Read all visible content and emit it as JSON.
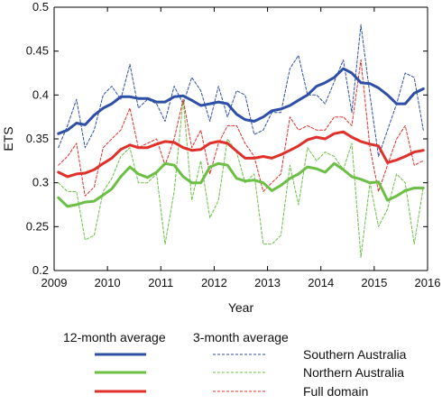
{
  "chart_data": {
    "type": "line",
    "xlabel": "Year",
    "ylabel": "ETS",
    "xlim": [
      2009,
      2016
    ],
    "ylim": [
      0.2,
      0.5
    ],
    "x_ticks": [
      2009,
      2010,
      2011,
      2012,
      2013,
      2014,
      2015,
      2016
    ],
    "y_ticks": [
      0.2,
      0.25,
      0.3,
      0.35,
      0.4,
      0.45,
      0.5
    ],
    "y_tick_labels": [
      "0.2",
      "0.25",
      "0.3",
      "0.35",
      "0.4",
      "0.45",
      "0.5"
    ],
    "grid": false,
    "legend": {
      "placement": "bottom",
      "header_12": "12-month average",
      "header_3": "3-month average",
      "entries": [
        "Southern Australia",
        "Northern Australia",
        "Full domain"
      ]
    },
    "colors": {
      "southern": "#2e4fa6",
      "northern": "#6cbf45",
      "full": "#e0302a"
    },
    "series": [
      {
        "name": "Southern Australia",
        "style": "12-month average",
        "key": "southern",
        "dashed": false,
        "x": [
          2009.08,
          2009.25,
          2009.42,
          2009.58,
          2009.75,
          2009.92,
          2010.08,
          2010.25,
          2010.42,
          2010.58,
          2010.75,
          2010.92,
          2011.08,
          2011.25,
          2011.42,
          2011.58,
          2011.75,
          2011.92,
          2012.08,
          2012.25,
          2012.42,
          2012.58,
          2012.75,
          2012.92,
          2013.08,
          2013.25,
          2013.42,
          2013.58,
          2013.75,
          2013.92,
          2014.08,
          2014.25,
          2014.42,
          2014.58,
          2014.75,
          2014.92,
          2015.08,
          2015.25,
          2015.42,
          2015.58,
          2015.75,
          2015.92
        ],
        "y": [
          0.356,
          0.36,
          0.368,
          0.366,
          0.377,
          0.385,
          0.39,
          0.398,
          0.398,
          0.396,
          0.396,
          0.392,
          0.392,
          0.398,
          0.399,
          0.394,
          0.388,
          0.39,
          0.392,
          0.39,
          0.378,
          0.372,
          0.37,
          0.375,
          0.382,
          0.384,
          0.388,
          0.394,
          0.4,
          0.41,
          0.414,
          0.42,
          0.43,
          0.425,
          0.414,
          0.413,
          0.408,
          0.4,
          0.39,
          0.39,
          0.402,
          0.407
        ]
      },
      {
        "name": "Northern Australia",
        "style": "12-month average",
        "key": "northern",
        "dashed": false,
        "x": [
          2009.08,
          2009.25,
          2009.42,
          2009.58,
          2009.75,
          2009.92,
          2010.08,
          2010.25,
          2010.42,
          2010.58,
          2010.75,
          2010.92,
          2011.08,
          2011.25,
          2011.42,
          2011.58,
          2011.75,
          2011.92,
          2012.08,
          2012.25,
          2012.42,
          2012.58,
          2012.75,
          2012.92,
          2013.08,
          2013.25,
          2013.42,
          2013.58,
          2013.75,
          2013.92,
          2014.08,
          2014.25,
          2014.42,
          2014.58,
          2014.75,
          2014.92,
          2015.08,
          2015.25,
          2015.42,
          2015.58,
          2015.75,
          2015.92
        ],
        "y": [
          0.283,
          0.273,
          0.275,
          0.278,
          0.279,
          0.286,
          0.293,
          0.307,
          0.318,
          0.31,
          0.306,
          0.312,
          0.322,
          0.32,
          0.307,
          0.3,
          0.3,
          0.318,
          0.322,
          0.32,
          0.305,
          0.302,
          0.303,
          0.3,
          0.291,
          0.297,
          0.305,
          0.31,
          0.318,
          0.316,
          0.312,
          0.322,
          0.315,
          0.307,
          0.304,
          0.3,
          0.301,
          0.28,
          0.285,
          0.291,
          0.294,
          0.294
        ]
      },
      {
        "name": "Full domain",
        "style": "12-month average",
        "key": "full",
        "dashed": false,
        "x": [
          2009.08,
          2009.25,
          2009.42,
          2009.58,
          2009.75,
          2009.92,
          2010.08,
          2010.25,
          2010.42,
          2010.58,
          2010.75,
          2010.92,
          2011.08,
          2011.25,
          2011.42,
          2011.58,
          2011.75,
          2011.92,
          2012.08,
          2012.25,
          2012.42,
          2012.58,
          2012.75,
          2012.92,
          2013.08,
          2013.25,
          2013.42,
          2013.58,
          2013.75,
          2013.92,
          2014.08,
          2014.25,
          2014.42,
          2014.58,
          2014.75,
          2014.92,
          2015.08,
          2015.25,
          2015.42,
          2015.58,
          2015.75,
          2015.92
        ],
        "y": [
          0.312,
          0.307,
          0.31,
          0.311,
          0.315,
          0.322,
          0.328,
          0.338,
          0.343,
          0.34,
          0.34,
          0.344,
          0.347,
          0.346,
          0.34,
          0.337,
          0.338,
          0.345,
          0.347,
          0.345,
          0.336,
          0.328,
          0.328,
          0.33,
          0.328,
          0.332,
          0.337,
          0.342,
          0.349,
          0.352,
          0.35,
          0.356,
          0.358,
          0.352,
          0.347,
          0.344,
          0.342,
          0.323,
          0.326,
          0.33,
          0.335,
          0.337
        ]
      },
      {
        "name": "Southern Australia",
        "style": "3-month average",
        "key": "southern",
        "dashed": true,
        "x": [
          2009.08,
          2009.25,
          2009.42,
          2009.58,
          2009.75,
          2009.92,
          2010.08,
          2010.25,
          2010.42,
          2010.58,
          2010.75,
          2010.92,
          2011.08,
          2011.25,
          2011.42,
          2011.58,
          2011.75,
          2011.92,
          2012.08,
          2012.25,
          2012.42,
          2012.58,
          2012.75,
          2012.92,
          2013.08,
          2013.25,
          2013.42,
          2013.58,
          2013.75,
          2013.92,
          2014.08,
          2014.25,
          2014.42,
          2014.58,
          2014.75,
          2014.92,
          2015.08,
          2015.25,
          2015.42,
          2015.58,
          2015.75,
          2015.92
        ],
        "y": [
          0.34,
          0.365,
          0.395,
          0.34,
          0.36,
          0.4,
          0.41,
          0.395,
          0.435,
          0.385,
          0.395,
          0.39,
          0.37,
          0.41,
          0.39,
          0.42,
          0.405,
          0.37,
          0.41,
          0.375,
          0.405,
          0.4,
          0.355,
          0.36,
          0.38,
          0.38,
          0.43,
          0.445,
          0.4,
          0.4,
          0.39,
          0.415,
          0.44,
          0.38,
          0.48,
          0.4,
          0.33,
          0.36,
          0.39,
          0.425,
          0.42,
          0.36
        ]
      },
      {
        "name": "Northern Australia",
        "style": "3-month average",
        "key": "northern",
        "dashed": true,
        "x": [
          2009.08,
          2009.25,
          2009.42,
          2009.58,
          2009.75,
          2009.92,
          2010.08,
          2010.25,
          2010.42,
          2010.58,
          2010.75,
          2010.92,
          2011.08,
          2011.25,
          2011.42,
          2011.58,
          2011.75,
          2011.92,
          2012.08,
          2012.25,
          2012.42,
          2012.58,
          2012.75,
          2012.92,
          2013.08,
          2013.25,
          2013.42,
          2013.58,
          2013.75,
          2013.92,
          2014.08,
          2014.25,
          2014.42,
          2014.58,
          2014.75,
          2014.92,
          2015.08,
          2015.25,
          2015.42,
          2015.58,
          2015.75,
          2015.92
        ],
        "y": [
          0.3,
          0.29,
          0.29,
          0.235,
          0.24,
          0.29,
          0.305,
          0.33,
          0.34,
          0.3,
          0.3,
          0.31,
          0.23,
          0.29,
          0.395,
          0.28,
          0.325,
          0.26,
          0.28,
          0.35,
          0.335,
          0.3,
          0.31,
          0.23,
          0.23,
          0.24,
          0.32,
          0.275,
          0.34,
          0.325,
          0.335,
          0.33,
          0.315,
          0.345,
          0.215,
          0.3,
          0.25,
          0.27,
          0.31,
          0.3,
          0.23,
          0.295
        ]
      },
      {
        "name": "Full domain",
        "style": "3-month average",
        "key": "full",
        "dashed": true,
        "x": [
          2009.08,
          2009.25,
          2009.42,
          2009.58,
          2009.75,
          2009.92,
          2010.08,
          2010.25,
          2010.42,
          2010.58,
          2010.75,
          2010.92,
          2011.08,
          2011.25,
          2011.42,
          2011.58,
          2011.75,
          2011.92,
          2012.08,
          2012.25,
          2012.42,
          2012.58,
          2012.75,
          2012.92,
          2013.08,
          2013.25,
          2013.42,
          2013.58,
          2013.75,
          2013.92,
          2014.08,
          2014.25,
          2014.42,
          2014.58,
          2014.75,
          2014.92,
          2015.08,
          2015.25,
          2015.42,
          2015.58,
          2015.75,
          2015.92
        ],
        "y": [
          0.32,
          0.33,
          0.345,
          0.285,
          0.295,
          0.34,
          0.35,
          0.36,
          0.385,
          0.34,
          0.345,
          0.35,
          0.32,
          0.35,
          0.395,
          0.34,
          0.36,
          0.31,
          0.345,
          0.365,
          0.365,
          0.345,
          0.33,
          0.29,
          0.3,
          0.31,
          0.375,
          0.36,
          0.365,
          0.36,
          0.36,
          0.375,
          0.375,
          0.365,
          0.44,
          0.34,
          0.29,
          0.32,
          0.35,
          0.365,
          0.32,
          0.325
        ]
      }
    ]
  }
}
